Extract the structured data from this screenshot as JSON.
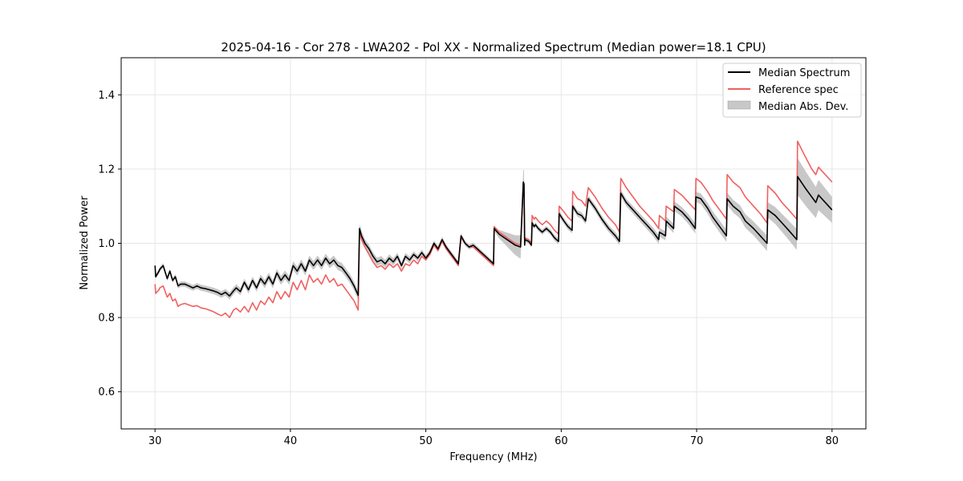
{
  "chart_data": {
    "type": "line",
    "title": "2025-04-16 - Cor 278 - LWA202 - Pol XX - Normalized Spectrum (Median power=18.1 CPU)",
    "xlabel": "Frequency (MHz)",
    "ylabel": "Normalized Power",
    "xlim": [
      27.5,
      82.5
    ],
    "ylim": [
      0.5,
      1.5
    ],
    "xticks": [
      30,
      40,
      50,
      60,
      70,
      80
    ],
    "yticks": [
      0.6,
      0.8,
      1.0,
      1.2,
      1.4
    ],
    "xtick_labels": [
      "30",
      "40",
      "50",
      "60",
      "70",
      "80"
    ],
    "ytick_labels": [
      "0.6",
      "0.8",
      "1.0",
      "1.2",
      "1.4"
    ],
    "grid": true,
    "legend_position": "top-right",
    "colors": {
      "median": "#000000",
      "reference": "#f06060",
      "mad_fill": "#b0b0b0"
    },
    "series": [
      {
        "name": "Median Spectrum",
        "x": [
          30.0,
          30.05,
          30.3,
          30.35,
          30.6,
          30.9,
          31.1,
          31.3,
          31.5,
          31.7,
          31.9,
          32.2,
          32.5,
          32.8,
          33.1,
          33.4,
          33.7,
          34.0,
          34.3,
          34.6,
          34.9,
          35.2,
          35.5,
          35.8,
          36.0,
          36.3,
          36.6,
          36.9,
          37.2,
          37.5,
          37.8,
          38.1,
          38.4,
          38.7,
          39.0,
          39.3,
          39.6,
          39.9,
          40.2,
          40.5,
          40.8,
          41.1,
          41.4,
          41.7,
          42.0,
          42.3,
          42.6,
          42.9,
          43.2,
          43.5,
          43.8,
          44.1,
          44.4,
          44.7,
          45.0,
          45.1,
          45.25,
          45.5,
          45.8,
          46.1,
          46.4,
          46.7,
          47.0,
          47.3,
          47.6,
          47.9,
          48.2,
          48.5,
          48.8,
          49.1,
          49.4,
          49.7,
          50.0,
          50.3,
          50.6,
          50.9,
          51.2,
          51.5,
          51.8,
          52.1,
          52.4,
          52.6,
          52.9,
          53.2,
          53.5,
          53.8,
          54.1,
          54.4,
          54.7,
          55.0,
          55.05,
          55.4,
          55.8,
          56.2,
          56.6,
          57.0,
          57.2,
          57.25,
          57.3,
          57.32,
          57.6,
          57.8,
          57.85,
          58.0,
          58.1,
          58.3,
          58.6,
          58.9,
          59.2,
          59.5,
          59.8,
          59.85,
          60.2,
          60.5,
          60.8,
          60.85,
          61.2,
          61.5,
          61.8,
          62.0,
          62.5,
          63.0,
          63.5,
          64.0,
          64.3,
          64.4,
          64.8,
          65.3,
          65.8,
          66.3,
          66.8,
          67.2,
          67.25,
          67.7,
          67.75,
          68.3,
          68.35,
          68.9,
          69.4,
          69.9,
          69.95,
          70.3,
          70.8,
          71.2,
          71.7,
          72.2,
          72.25,
          72.7,
          73.2,
          73.6,
          74.2,
          74.7,
          75.2,
          75.25,
          75.8,
          76.3,
          76.8,
          77.4,
          77.45,
          78.0,
          78.5,
          78.8,
          79.0,
          79.5,
          80.0
        ],
        "y": [
          0.94,
          0.91,
          0.925,
          0.93,
          0.94,
          0.905,
          0.925,
          0.9,
          0.91,
          0.885,
          0.89,
          0.89,
          0.885,
          0.88,
          0.885,
          0.88,
          0.878,
          0.875,
          0.872,
          0.868,
          0.862,
          0.868,
          0.858,
          0.872,
          0.88,
          0.87,
          0.895,
          0.875,
          0.9,
          0.88,
          0.905,
          0.89,
          0.91,
          0.89,
          0.92,
          0.9,
          0.915,
          0.9,
          0.94,
          0.925,
          0.945,
          0.925,
          0.955,
          0.94,
          0.955,
          0.94,
          0.96,
          0.945,
          0.955,
          0.94,
          0.935,
          0.92,
          0.905,
          0.885,
          0.86,
          1.04,
          1.02,
          1.0,
          0.985,
          0.965,
          0.95,
          0.955,
          0.945,
          0.96,
          0.95,
          0.965,
          0.94,
          0.965,
          0.955,
          0.97,
          0.96,
          0.975,
          0.96,
          0.975,
          1.0,
          0.985,
          1.01,
          0.99,
          0.975,
          0.96,
          0.945,
          1.02,
          1.0,
          0.99,
          0.995,
          0.985,
          0.975,
          0.965,
          0.955,
          0.945,
          1.04,
          1.025,
          1.015,
          1.005,
          0.995,
          0.99,
          1.165,
          1.16,
          0.995,
          1.01,
          1.005,
          0.995,
          1.055,
          1.045,
          1.05,
          1.04,
          1.03,
          1.04,
          1.03,
          1.015,
          1.005,
          1.08,
          1.06,
          1.045,
          1.035,
          1.1,
          1.08,
          1.075,
          1.06,
          1.12,
          1.095,
          1.065,
          1.04,
          1.02,
          1.005,
          1.135,
          1.11,
          1.09,
          1.07,
          1.05,
          1.03,
          1.01,
          1.03,
          1.02,
          1.06,
          1.04,
          1.1,
          1.085,
          1.065,
          1.04,
          1.125,
          1.12,
          1.095,
          1.07,
          1.045,
          1.02,
          1.12,
          1.1,
          1.085,
          1.06,
          1.04,
          1.02,
          1.0,
          1.09,
          1.075,
          1.055,
          1.035,
          1.01,
          1.18,
          1.15,
          1.125,
          1.11,
          1.13,
          1.11,
          1.09
        ]
      },
      {
        "name": "Reference spec",
        "x": [
          30.0,
          30.05,
          30.3,
          30.35,
          30.6,
          30.9,
          31.1,
          31.3,
          31.5,
          31.7,
          31.9,
          32.2,
          32.5,
          32.8,
          33.1,
          33.4,
          33.7,
          34.0,
          34.3,
          34.6,
          34.9,
          35.2,
          35.5,
          35.8,
          36.0,
          36.3,
          36.6,
          36.9,
          37.2,
          37.5,
          37.8,
          38.1,
          38.4,
          38.7,
          39.0,
          39.3,
          39.6,
          39.9,
          40.2,
          40.5,
          40.8,
          41.1,
          41.4,
          41.7,
          42.0,
          42.3,
          42.6,
          42.9,
          43.2,
          43.5,
          43.8,
          44.1,
          44.4,
          44.7,
          45.0,
          45.1,
          45.25,
          45.5,
          45.8,
          46.1,
          46.4,
          46.7,
          47.0,
          47.3,
          47.6,
          47.9,
          48.2,
          48.5,
          48.8,
          49.1,
          49.4,
          49.7,
          50.0,
          50.3,
          50.6,
          50.9,
          51.2,
          51.5,
          51.8,
          52.1,
          52.4,
          52.6,
          52.9,
          53.2,
          53.5,
          53.8,
          54.1,
          54.4,
          54.7,
          55.0,
          55.05,
          55.4,
          55.8,
          56.2,
          56.6,
          57.0,
          57.2,
          57.25,
          57.3,
          57.32,
          57.6,
          57.8,
          57.85,
          58.0,
          58.1,
          58.3,
          58.6,
          58.9,
          59.2,
          59.5,
          59.8,
          59.85,
          60.2,
          60.5,
          60.8,
          60.85,
          61.2,
          61.5,
          61.8,
          62.0,
          62.5,
          63.0,
          63.5,
          64.0,
          64.3,
          64.4,
          64.8,
          65.3,
          65.8,
          66.3,
          66.8,
          67.2,
          67.25,
          67.7,
          67.75,
          68.3,
          68.35,
          68.9,
          69.4,
          69.9,
          69.95,
          70.3,
          70.8,
          71.2,
          71.7,
          72.2,
          72.25,
          72.7,
          73.2,
          73.6,
          74.2,
          74.7,
          75.2,
          75.25,
          75.8,
          76.3,
          76.8,
          77.4,
          77.45,
          78.0,
          78.5,
          78.8,
          79.0,
          79.5,
          80.0
        ],
        "y": [
          0.89,
          0.865,
          0.875,
          0.88,
          0.885,
          0.855,
          0.865,
          0.845,
          0.85,
          0.83,
          0.835,
          0.838,
          0.834,
          0.83,
          0.832,
          0.826,
          0.824,
          0.82,
          0.816,
          0.81,
          0.805,
          0.812,
          0.8,
          0.82,
          0.825,
          0.815,
          0.83,
          0.815,
          0.84,
          0.82,
          0.845,
          0.835,
          0.855,
          0.84,
          0.87,
          0.85,
          0.87,
          0.855,
          0.895,
          0.875,
          0.9,
          0.875,
          0.915,
          0.895,
          0.905,
          0.89,
          0.915,
          0.895,
          0.905,
          0.885,
          0.89,
          0.875,
          0.86,
          0.845,
          0.82,
          1.03,
          1.01,
          0.99,
          0.97,
          0.95,
          0.935,
          0.94,
          0.93,
          0.945,
          0.935,
          0.945,
          0.925,
          0.945,
          0.94,
          0.955,
          0.945,
          0.965,
          0.955,
          0.97,
          0.995,
          0.98,
          1.005,
          0.985,
          0.97,
          0.955,
          0.94,
          1.015,
          1.0,
          0.99,
          0.99,
          0.98,
          0.97,
          0.96,
          0.95,
          0.94,
          1.045,
          1.03,
          1.02,
          1.01,
          1.0,
          0.995,
          1.16,
          1.155,
          1.0,
          1.015,
          1.01,
          1.0,
          1.075,
          1.065,
          1.07,
          1.06,
          1.05,
          1.06,
          1.05,
          1.035,
          1.025,
          1.1,
          1.085,
          1.07,
          1.06,
          1.14,
          1.12,
          1.115,
          1.1,
          1.15,
          1.125,
          1.095,
          1.07,
          1.05,
          1.03,
          1.175,
          1.15,
          1.125,
          1.1,
          1.08,
          1.06,
          1.04,
          1.075,
          1.06,
          1.1,
          1.085,
          1.145,
          1.13,
          1.11,
          1.09,
          1.175,
          1.165,
          1.14,
          1.115,
          1.09,
          1.065,
          1.185,
          1.165,
          1.15,
          1.125,
          1.1,
          1.08,
          1.055,
          1.155,
          1.135,
          1.11,
          1.09,
          1.065,
          1.275,
          1.235,
          1.2,
          1.185,
          1.205,
          1.185,
          1.165
        ]
      },
      {
        "name": "Median Abs. Dev.",
        "type": "band",
        "half_width_note": "band around Median Spectrum",
        "x": [
          30.0,
          35.0,
          40.0,
          45.0,
          50.0,
          55.0,
          57.25,
          57.3,
          60.0,
          65.0,
          70.0,
          75.0,
          77.4,
          77.45,
          80.0
        ],
        "halfwidth": [
          0.006,
          0.009,
          0.012,
          0.012,
          0.008,
          0.006,
          0.035,
          0.006,
          0.008,
          0.01,
          0.014,
          0.02,
          0.028,
          0.05,
          0.035
        ]
      }
    ]
  }
}
